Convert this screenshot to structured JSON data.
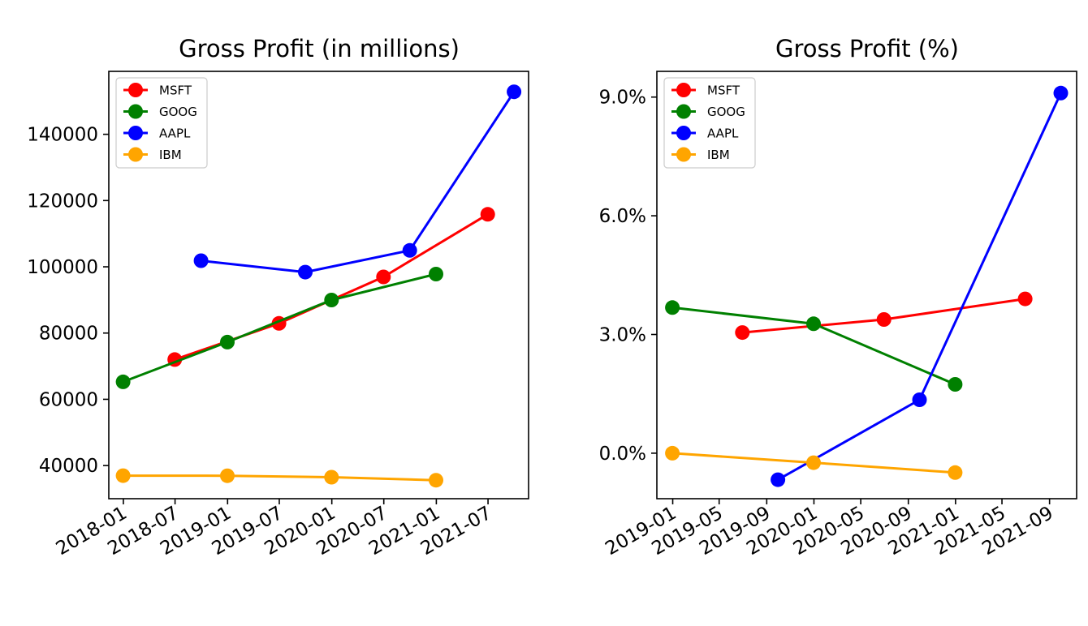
{
  "chart_data": [
    {
      "type": "line",
      "title": "Gross Profit (in millions)",
      "xlabel": "",
      "ylabel": "",
      "x_ticks": [
        "2018-01",
        "2018-07",
        "2019-01",
        "2019-07",
        "2020-01",
        "2020-07",
        "2021-01",
        "2021-07"
      ],
      "y_ticks": [
        "40000",
        "60000",
        "80000",
        "100000",
        "120000",
        "140000"
      ],
      "xlim": [
        "2017-11-11",
        "2021-11-20"
      ],
      "ylim": [
        30000,
        159000
      ],
      "legend_position": "top-left",
      "grid": false,
      "series": [
        {
          "name": "MSFT",
          "color": "#ff0000",
          "points": [
            {
              "x": "2018-06-30",
              "y": 72007
            },
            {
              "x": "2019-06-30",
              "y": 82933
            },
            {
              "x": "2020-06-30",
              "y": 96937
            },
            {
              "x": "2021-06-30",
              "y": 115856
            }
          ]
        },
        {
          "name": "GOOG",
          "color": "#008000",
          "points": [
            {
              "x": "2017-12-31",
              "y": 65272
            },
            {
              "x": "2018-12-31",
              "y": 77270
            },
            {
              "x": "2019-12-31",
              "y": 89961
            },
            {
              "x": "2020-12-31",
              "y": 97795
            }
          ]
        },
        {
          "name": "AAPL",
          "color": "#0000ff",
          "points": [
            {
              "x": "2018-09-30",
              "y": 101839
            },
            {
              "x": "2019-09-30",
              "y": 98392
            },
            {
              "x": "2020-09-30",
              "y": 104956
            },
            {
              "x": "2021-09-30",
              "y": 152836
            }
          ]
        },
        {
          "name": "IBM",
          "color": "#ffa500",
          "points": [
            {
              "x": "2017-12-31",
              "y": 36943
            },
            {
              "x": "2018-12-31",
              "y": 36936
            },
            {
              "x": "2019-12-31",
              "y": 36488
            },
            {
              "x": "2020-12-31",
              "y": 35575
            }
          ]
        }
      ]
    },
    {
      "type": "line",
      "title": "Gross Profit (%)",
      "xlabel": "",
      "ylabel": "",
      "x_ticks": [
        "2019-01",
        "2019-05",
        "2019-09",
        "2020-01",
        "2020-05",
        "2020-09",
        "2021-01",
        "2021-05",
        "2021-09"
      ],
      "y_ticks": [
        "0.0%",
        "3.0%",
        "6.0%",
        "9.0%"
      ],
      "xlim": [
        "2018-11-21",
        "2021-11-10"
      ],
      "ylim": [
        -1.15,
        9.65
      ],
      "legend_position": "top-left",
      "grid": false,
      "series": [
        {
          "name": "MSFT",
          "color": "#ff0000",
          "points": [
            {
              "x": "2019-06-30",
              "y": 3.05
            },
            {
              "x": "2020-06-30",
              "y": 3.38
            },
            {
              "x": "2021-06-30",
              "y": 3.9
            }
          ]
        },
        {
          "name": "GOOG",
          "color": "#008000",
          "points": [
            {
              "x": "2018-12-31",
              "y": 3.68
            },
            {
              "x": "2019-12-31",
              "y": 3.27
            },
            {
              "x": "2020-12-31",
              "y": 1.74
            }
          ]
        },
        {
          "name": "AAPL",
          "color": "#0000ff",
          "points": [
            {
              "x": "2019-09-30",
              "y": -0.67
            },
            {
              "x": "2020-09-30",
              "y": 1.35
            },
            {
              "x": "2021-09-30",
              "y": 9.1
            }
          ]
        },
        {
          "name": "IBM",
          "color": "#ffa500",
          "points": [
            {
              "x": "2018-12-31",
              "y": 0.0
            },
            {
              "x": "2019-12-31",
              "y": -0.24
            },
            {
              "x": "2020-12-31",
              "y": -0.49
            }
          ]
        }
      ]
    }
  ]
}
